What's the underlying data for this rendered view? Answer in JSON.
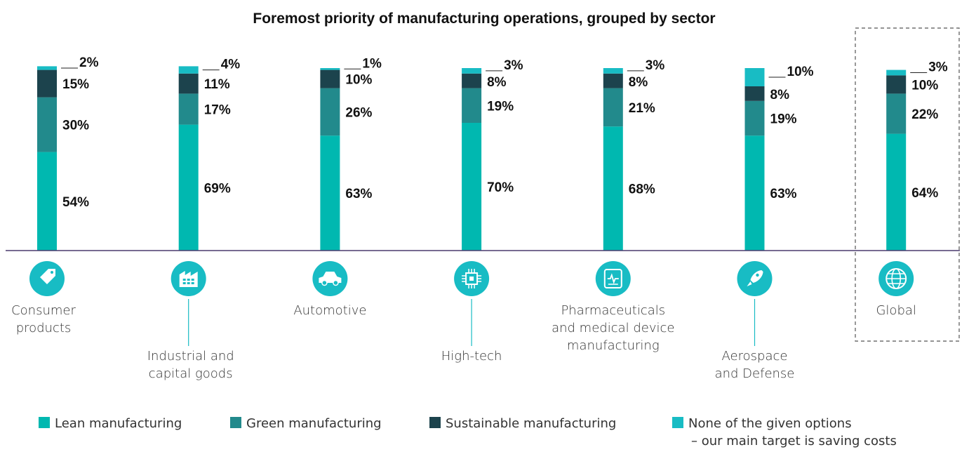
{
  "chart_data": {
    "type": "bar",
    "stacked": true,
    "title": "Foremost priority of manufacturing operations, grouped by sector",
    "categories": [
      "Consumer products",
      "Industrial and capital goods",
      "Automotive",
      "High-tech",
      "Pharmaceuticals and medical device manufacturing",
      "Aerospace and Defense",
      "Global"
    ],
    "category_label_lines": [
      [
        "Consumer",
        "products"
      ],
      [
        "Industrial and",
        "capital goods"
      ],
      [
        "Automotive"
      ],
      [
        "High-tech"
      ],
      [
        "Pharmaceuticals",
        "and medical device",
        "manufacturing"
      ],
      [
        "Aerospace",
        "and Defense"
      ],
      [
        "Global"
      ]
    ],
    "category_icons": [
      "price-tag-icon",
      "factory-icon",
      "car-icon",
      "microchip-icon",
      "medical-monitor-icon",
      "rocket-icon",
      "globe-icon"
    ],
    "series": [
      {
        "name": "Lean manufacturing",
        "color": "#00b8b0",
        "values": [
          54,
          69,
          63,
          70,
          68,
          63,
          64
        ]
      },
      {
        "name": "Green manufacturing",
        "color": "#228a8c",
        "values": [
          30,
          17,
          26,
          19,
          21,
          19,
          22
        ]
      },
      {
        "name": "Sustainable manufacturing",
        "color": "#1c434d",
        "values": [
          15,
          11,
          10,
          8,
          8,
          8,
          10
        ]
      },
      {
        "name": "None of the given options – our main target is saving costs",
        "color": "#18bcc4",
        "values": [
          2,
          4,
          1,
          3,
          3,
          10,
          3
        ]
      }
    ],
    "data_labels": [
      [
        "54%",
        "30%",
        "15%",
        "2%"
      ],
      [
        "69%",
        "17%",
        "11%",
        "4%"
      ],
      [
        "63%",
        "26%",
        "10%",
        "1%"
      ],
      [
        "70%",
        "19%",
        "8%",
        "3%"
      ],
      [
        "68%",
        "21%",
        "8%",
        "3%"
      ],
      [
        "63%",
        "19%",
        "8%",
        "10%"
      ],
      [
        "64%",
        "22%",
        "10%",
        "3%"
      ]
    ],
    "legend": {
      "position": "bottom",
      "items": [
        {
          "lines": [
            "Lean manufacturing"
          ]
        },
        {
          "lines": [
            "Green manufacturing"
          ]
        },
        {
          "lines": [
            "Sustainable manufacturing"
          ]
        },
        {
          "lines": [
            "None of the given options",
            "– our main target is saving costs"
          ]
        }
      ]
    },
    "highlighted_category": "Global",
    "grid": false
  }
}
